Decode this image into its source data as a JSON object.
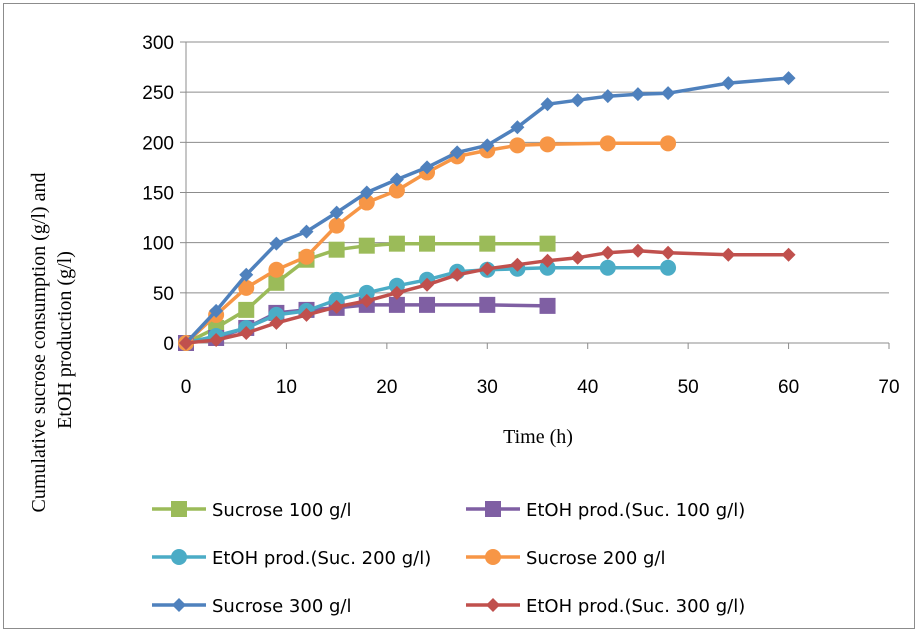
{
  "chart_data": {
    "type": "line",
    "title": "",
    "xlabel": "Time (h)",
    "ylabel_lines": [
      "Cumulative sucrose consumption (g/l) and",
      "EtOH production (g/l)"
    ],
    "xlim": [
      0,
      70
    ],
    "ylim": [
      0,
      300
    ],
    "xticks": [
      "0",
      "10",
      "20",
      "30",
      "40",
      "50",
      "60",
      "70"
    ],
    "yticks": [
      "0",
      "50",
      "100",
      "150",
      "200",
      "250",
      "300"
    ],
    "grid": "horizontal",
    "legend_position": "bottom",
    "series": [
      {
        "name": "Sucrose 100 g/l",
        "color": "#9bbb59",
        "marker": "square",
        "x": [
          0,
          3,
          6,
          9,
          12,
          15,
          18,
          21,
          24,
          30,
          36
        ],
        "y": [
          0,
          15,
          33,
          60,
          83,
          93,
          97,
          99,
          99,
          99,
          99
        ]
      },
      {
        "name": "EtOH prod.(Suc. 100 g/l)",
        "color": "#7f5fa3",
        "marker": "square",
        "x": [
          0,
          3,
          6,
          9,
          12,
          15,
          18,
          21,
          24,
          30,
          36
        ],
        "y": [
          0,
          5,
          15,
          30,
          33,
          35,
          38,
          38,
          38,
          38,
          37
        ]
      },
      {
        "name": "EtOH prod.(Suc. 200 g/l)",
        "color": "#4bacc6",
        "marker": "circle",
        "x": [
          0,
          3,
          6,
          9,
          12,
          15,
          18,
          21,
          24,
          27,
          30,
          33,
          36,
          42,
          48
        ],
        "y": [
          0,
          7,
          15,
          28,
          32,
          43,
          50,
          57,
          63,
          71,
          73,
          74,
          75,
          75,
          75
        ]
      },
      {
        "name": "Sucrose 200 g/l",
        "color": "#f79646",
        "marker": "circle",
        "x": [
          0,
          3,
          6,
          9,
          12,
          15,
          18,
          21,
          24,
          27,
          30,
          33,
          36,
          42,
          48
        ],
        "y": [
          0,
          28,
          55,
          73,
          86,
          117,
          140,
          152,
          170,
          186,
          192,
          197,
          198,
          199,
          199
        ]
      },
      {
        "name": "Sucrose 300 g/l",
        "color": "#4f81bd",
        "marker": "diamond",
        "x": [
          0,
          3,
          6,
          9,
          12,
          15,
          18,
          21,
          24,
          27,
          30,
          33,
          36,
          39,
          42,
          45,
          48,
          54,
          60
        ],
        "y": [
          0,
          32,
          68,
          99,
          111,
          130,
          150,
          163,
          175,
          190,
          197,
          215,
          238,
          242,
          246,
          248,
          249,
          259,
          264
        ]
      },
      {
        "name": "EtOH prod.(Suc. 300 g/l)",
        "color": "#c0504d",
        "marker": "diamond",
        "x": [
          0,
          3,
          6,
          9,
          12,
          15,
          18,
          21,
          24,
          27,
          30,
          33,
          36,
          39,
          42,
          45,
          48,
          54,
          60
        ],
        "y": [
          0,
          3,
          10,
          20,
          28,
          36,
          42,
          50,
          58,
          68,
          74,
          78,
          82,
          85,
          90,
          92,
          90,
          88,
          88
        ]
      }
    ]
  }
}
